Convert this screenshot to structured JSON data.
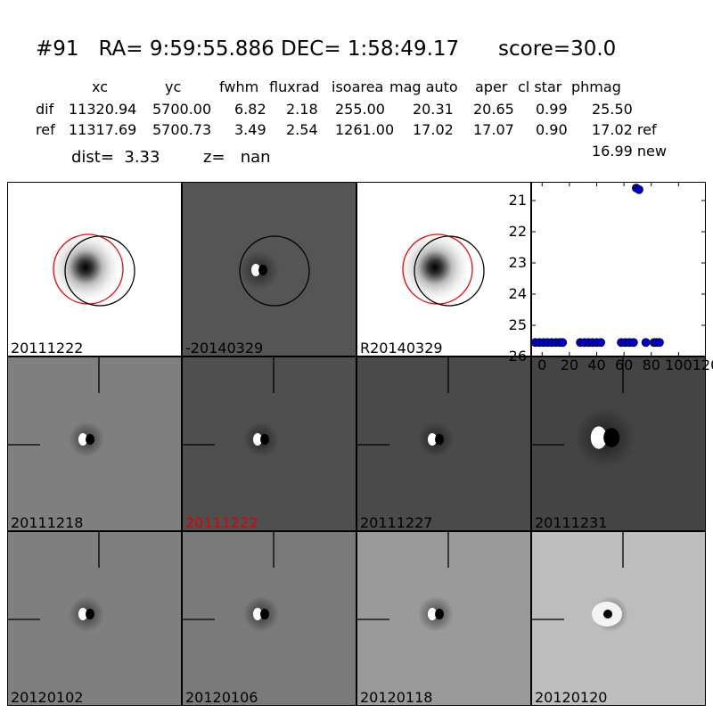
{
  "title": "#91   RA= 9:59:55.886 DEC= 1:58:49.17      score=30.0",
  "table": {
    "headers": [
      "xc",
      "yc",
      "fwhm",
      "fluxrad",
      "isoarea",
      "mag auto",
      "aper",
      "cl star",
      "phmag"
    ],
    "rows": [
      {
        "name": "dif",
        "values": [
          "11320.94",
          "5700.00",
          "6.82",
          "2.18",
          "255.00",
          "20.31",
          "20.65",
          "0.99",
          "25.50"
        ]
      },
      {
        "name": "ref",
        "values": [
          "11317.69",
          "5700.73",
          "3.49",
          "2.54",
          "1261.00",
          "17.02",
          "17.07",
          "0.90",
          "17.02 ref"
        ]
      }
    ],
    "extra": "16.99 new"
  },
  "dist_label": "dist=  3.33",
  "z_label": "z=   nan",
  "panels": [
    {
      "label": "20111222",
      "bg": "#ffffff",
      "kind": "star"
    },
    {
      "label": "-20140329",
      "bg": "#555555",
      "kind": "dipole-circle"
    },
    {
      "label": "R20140329",
      "bg": "#ffffff",
      "kind": "star"
    },
    {
      "label": "20111218",
      "bg": "#7f7f7f",
      "kind": "dipole"
    },
    {
      "label": "20111222",
      "bg": "#4f4f4f",
      "kind": "dipole",
      "highlight": "#dd0000"
    },
    {
      "label": "20111227",
      "bg": "#4a4a4a",
      "kind": "dipole"
    },
    {
      "label": "20111231",
      "bg": "#444444",
      "kind": "dipole-big"
    },
    {
      "label": "20120102",
      "bg": "#7f7f7f",
      "kind": "dipole"
    },
    {
      "label": "20120106",
      "bg": "#7a7a7a",
      "kind": "dipole"
    },
    {
      "label": "20120118",
      "bg": "#9a9a9a",
      "kind": "dipole"
    },
    {
      "label": "20120120",
      "bg": "#bdbdbd",
      "kind": "dipole-ring"
    }
  ],
  "chart_data": {
    "type": "scatter",
    "title": "",
    "xlabel": "",
    "ylabel": "",
    "xlim": [
      -8,
      120
    ],
    "ylim": [
      26,
      20.4
    ],
    "y_inverted": true,
    "xticks": [
      0,
      20,
      40,
      60,
      80,
      100,
      120
    ],
    "yticks": [
      21,
      22,
      23,
      24,
      25,
      26
    ],
    "marker_color": "#0000cc",
    "series": [
      {
        "points": [
          [
            -5,
            25.55
          ],
          [
            -2,
            25.55
          ],
          [
            1,
            25.55
          ],
          [
            4,
            25.55
          ],
          [
            7,
            25.55
          ],
          [
            10,
            25.55
          ],
          [
            13,
            25.55
          ],
          [
            15,
            25.55
          ],
          [
            28,
            25.55
          ],
          [
            31,
            25.55
          ],
          [
            34,
            25.55
          ],
          [
            37,
            25.55
          ],
          [
            40,
            25.55
          ],
          [
            43,
            25.55
          ],
          [
            58,
            25.55
          ],
          [
            61,
            25.55
          ],
          [
            64,
            25.55
          ],
          [
            67,
            25.55
          ],
          [
            69,
            20.6
          ],
          [
            71,
            20.65
          ],
          [
            76,
            25.55
          ],
          [
            82,
            25.55
          ],
          [
            84,
            25.55
          ],
          [
            86,
            25.55
          ]
        ]
      }
    ]
  }
}
